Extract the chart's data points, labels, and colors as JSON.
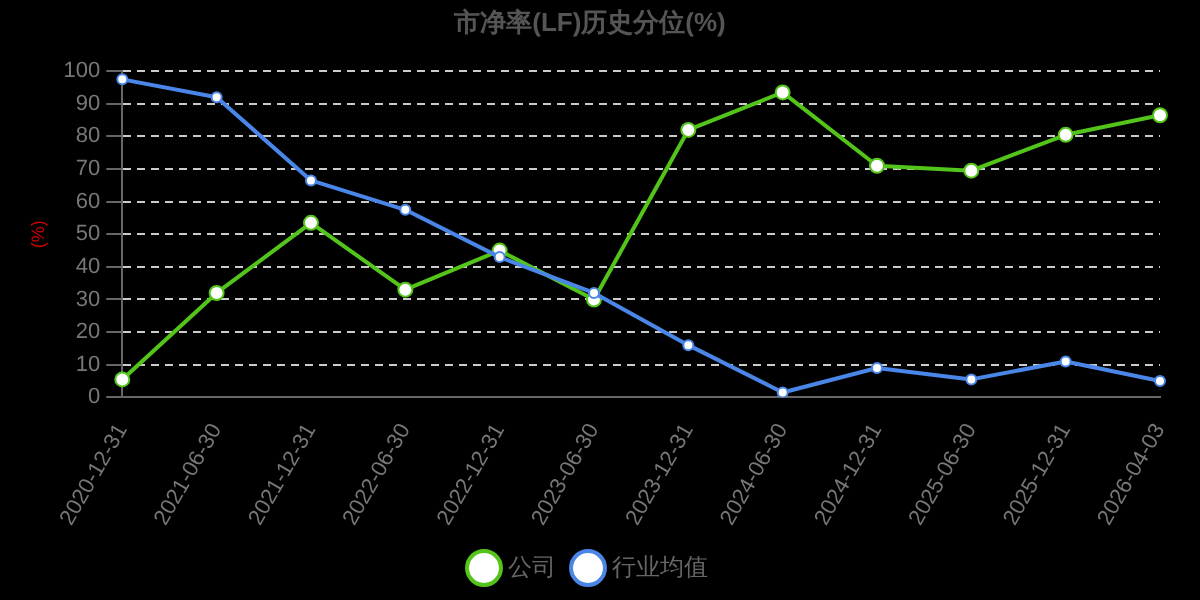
{
  "chart_data": {
    "type": "line",
    "title": "市净率(LF)历史分位(%)",
    "ylabel": "(%)",
    "categories": [
      "2020-12-31",
      "2021-06-30",
      "2021-12-31",
      "2022-06-30",
      "2022-12-31",
      "2023-06-30",
      "2023-12-31",
      "2024-06-30",
      "2024-12-31",
      "2025-06-30",
      "2025-12-31",
      "2026-04-03"
    ],
    "series": [
      {
        "name": "公司",
        "color": "#52c41a",
        "values": [
          5.5,
          32,
          53.5,
          33,
          45,
          30,
          82,
          93.5,
          71,
          69.5,
          80.5,
          86.5
        ]
      },
      {
        "name": "行业均值",
        "color": "#4a86e8",
        "values": [
          97.5,
          92,
          66.5,
          57.5,
          43,
          32,
          16,
          1.5,
          9,
          5.5,
          11,
          5
        ]
      }
    ],
    "ylim": [
      0,
      100
    ],
    "yticks": [
      0,
      10,
      20,
      30,
      40,
      50,
      60,
      70,
      80,
      90,
      100
    ],
    "grid": "y",
    "legend": "bottom",
    "marker": "circle",
    "line_style": "solid"
  }
}
